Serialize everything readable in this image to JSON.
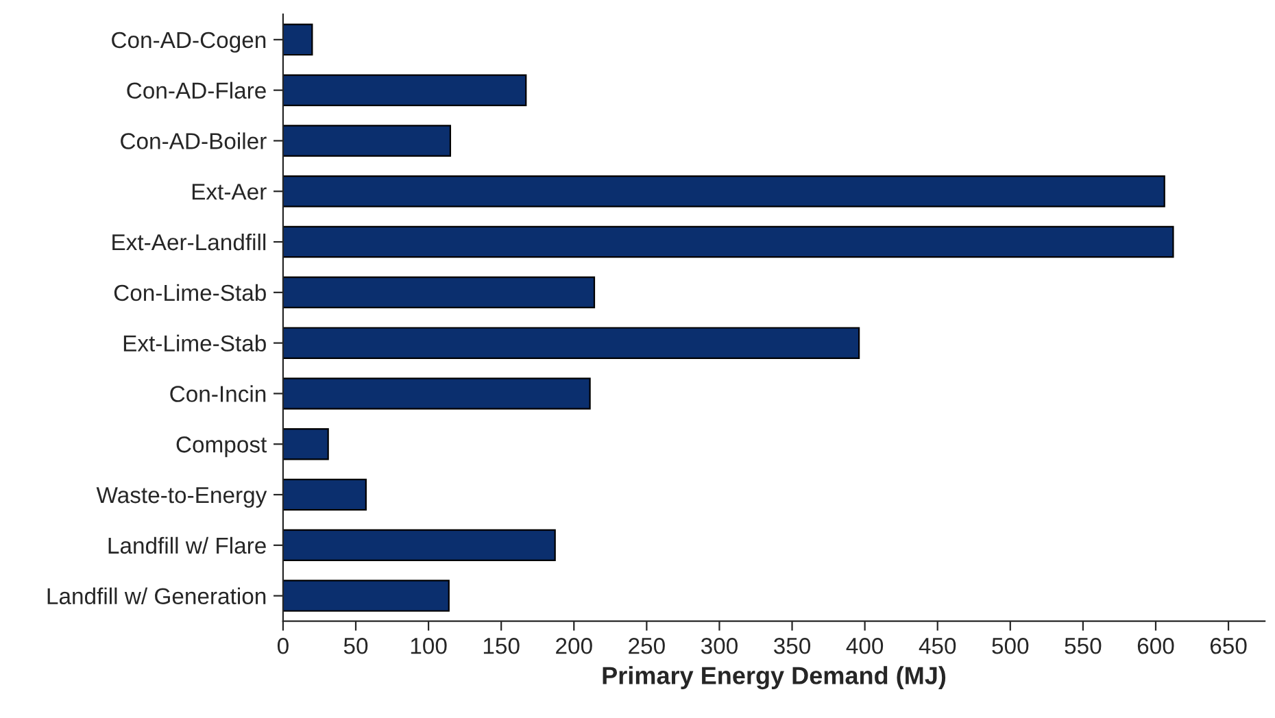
{
  "chart_data": {
    "type": "bar",
    "orientation": "horizontal",
    "xlabel": "Primary Energy Demand (MJ)",
    "categories": [
      "Con-AD-Cogen",
      "Con-AD-Flare",
      "Con-AD-Boiler",
      "Ext-Aer",
      "Ext-Aer-Landfill",
      "Con-Lime-Stab",
      "Ext-Lime-Stab",
      "Con-Incin",
      "Compost",
      "Waste-to-Energy",
      "Landfill w/ Flare",
      "Landfill w/ Generation"
    ],
    "values": [
      20,
      167,
      115,
      606,
      612,
      214,
      396,
      211,
      31,
      57,
      187,
      114
    ],
    "color": "#0b2f6e",
    "xlim": [
      0,
      675
    ],
    "xticks": [
      0,
      50,
      100,
      150,
      200,
      250,
      300,
      350,
      400,
      450,
      500,
      550,
      600,
      650
    ],
    "grid": false,
    "legend": false
  }
}
